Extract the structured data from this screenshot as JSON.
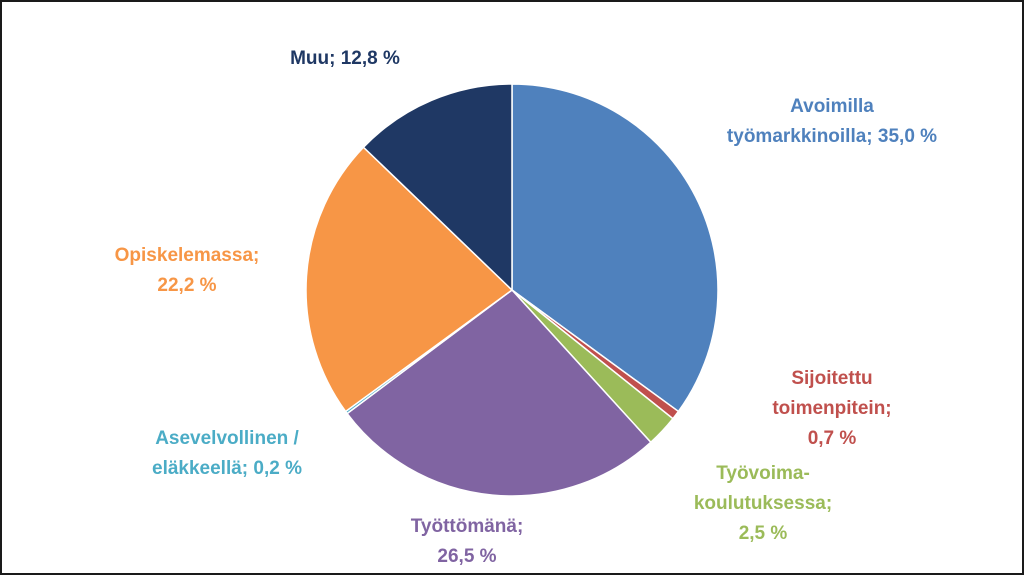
{
  "chart_data": {
    "type": "pie",
    "title": "",
    "slices": [
      {
        "label_lines": [
          "Avoimilla",
          "työmarkkinoilla; 35,0 %"
        ],
        "value": 35.0,
        "color": "#4f81bd"
      },
      {
        "label_lines": [
          "Sijoitettu",
          "toimenpitein;",
          "0,7 %"
        ],
        "value": 0.7,
        "color": "#c0504d"
      },
      {
        "label_lines": [
          "Työvoima-",
          "koulutuksessa;",
          "2,5 %"
        ],
        "value": 2.5,
        "color": "#9bbb59"
      },
      {
        "label_lines": [
          "Työttömänä;",
          "26,5 %"
        ],
        "value": 26.5,
        "color": "#8064a2"
      },
      {
        "label_lines": [
          "Asevelvollinen /",
          "eläkkeellä; 0,2 %"
        ],
        "value": 0.2,
        "color": "#4bacc6"
      },
      {
        "label_lines": [
          "Opiskelemassa;",
          "22,2 %"
        ],
        "value": 22.2,
        "color": "#f79646"
      },
      {
        "label_lines": [
          "Muu; 12,8 %"
        ],
        "value": 12.8,
        "color": "#1f3864"
      }
    ]
  }
}
